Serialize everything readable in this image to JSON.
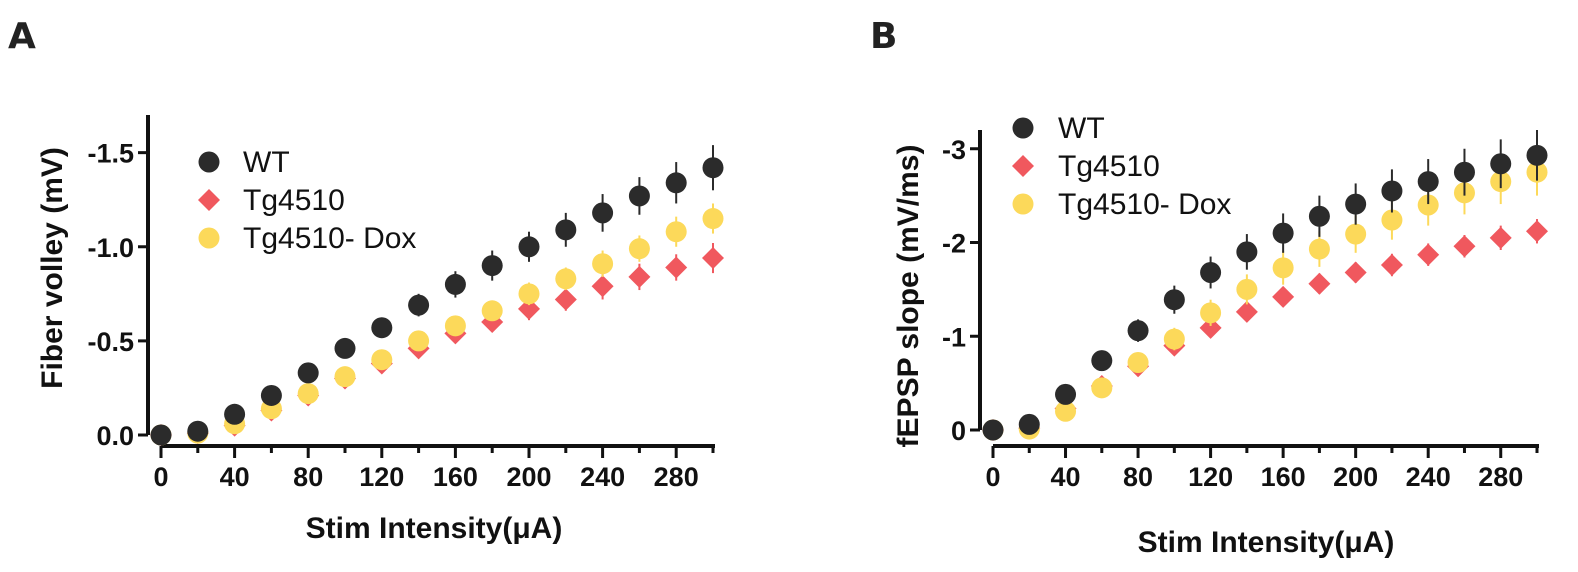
{
  "chart_data": [
    {
      "panel": "A",
      "type": "scatter",
      "xlabel": "Stim Intensity(μA)",
      "ylabel": "Fiber volley (mV)",
      "xlim": [
        0,
        300
      ],
      "ylim": [
        0,
        -1.7
      ],
      "xticks": [
        0,
        40,
        80,
        120,
        160,
        200,
        240,
        280
      ],
      "xtick_labels": [
        "0",
        "40",
        "80",
        "120",
        "160",
        "200",
        "240",
        "280"
      ],
      "yticks": [
        0,
        -0.5,
        -1.0,
        -1.5
      ],
      "ytick_labels": [
        "0.0",
        "-0.5",
        "-1.0",
        "-1.5"
      ],
      "y_axis_inverted": true,
      "legend_position": "top-left",
      "x": [
        0,
        20,
        40,
        60,
        80,
        100,
        120,
        140,
        160,
        180,
        200,
        220,
        240,
        260,
        280,
        300
      ],
      "series": [
        {
          "name": "WT",
          "marker": "circle",
          "color": "#2b2b2b",
          "values": [
            0,
            -0.02,
            -0.11,
            -0.21,
            -0.33,
            -0.46,
            -0.57,
            -0.69,
            -0.8,
            -0.9,
            -1.0,
            -1.09,
            -1.18,
            -1.27,
            -1.34,
            -1.42
          ],
          "errors": [
            0,
            0.01,
            0.02,
            0.03,
            0.04,
            0.04,
            0.05,
            0.06,
            0.07,
            0.08,
            0.08,
            0.09,
            0.1,
            0.1,
            0.11,
            0.12
          ]
        },
        {
          "name": "Tg4510",
          "marker": "diamond",
          "color": "#f0585e",
          "values": [
            0,
            -0.01,
            -0.05,
            -0.13,
            -0.21,
            -0.3,
            -0.38,
            -0.46,
            -0.54,
            -0.6,
            -0.67,
            -0.72,
            -0.79,
            -0.84,
            -0.89,
            -0.94
          ],
          "errors": [
            0,
            0.01,
            0.02,
            0.02,
            0.03,
            0.03,
            0.04,
            0.04,
            0.05,
            0.05,
            0.06,
            0.06,
            0.07,
            0.07,
            0.07,
            0.08
          ]
        },
        {
          "name": "Tg4510- Dox",
          "marker": "circle",
          "color": "#fcd95a",
          "values": [
            0,
            -0.01,
            -0.06,
            -0.14,
            -0.22,
            -0.31,
            -0.4,
            -0.5,
            -0.58,
            -0.66,
            -0.75,
            -0.83,
            -0.91,
            -0.99,
            -1.08,
            -1.15
          ],
          "errors": [
            0,
            0.01,
            0.02,
            0.02,
            0.03,
            0.03,
            0.04,
            0.04,
            0.05,
            0.05,
            0.06,
            0.06,
            0.07,
            0.07,
            0.08,
            0.08
          ]
        }
      ]
    },
    {
      "panel": "B",
      "type": "scatter",
      "xlabel": "Stim Intensity(μA)",
      "ylabel": "fEPSP slope (mV/ms)",
      "xlim": [
        0,
        300
      ],
      "ylim": [
        0,
        -3.2
      ],
      "xticks": [
        0,
        40,
        80,
        120,
        160,
        200,
        240,
        280
      ],
      "xtick_labels": [
        "0",
        "40",
        "80",
        "120",
        "160",
        "200",
        "240",
        "280"
      ],
      "yticks": [
        0,
        -1,
        -2,
        -3
      ],
      "ytick_labels": [
        "0",
        "-1",
        "-2",
        "-3"
      ],
      "y_axis_inverted": true,
      "legend_position": "top-left",
      "x": [
        0,
        20,
        40,
        60,
        80,
        100,
        120,
        140,
        160,
        180,
        200,
        220,
        240,
        260,
        280,
        300
      ],
      "series": [
        {
          "name": "WT",
          "marker": "circle",
          "color": "#2b2b2b",
          "values": [
            0,
            -0.06,
            -0.38,
            -0.74,
            -1.06,
            -1.39,
            -1.68,
            -1.9,
            -2.1,
            -2.28,
            -2.41,
            -2.55,
            -2.65,
            -2.75,
            -2.84,
            -2.93
          ],
          "errors": [
            0,
            0.03,
            0.08,
            0.1,
            0.12,
            0.15,
            0.17,
            0.19,
            0.21,
            0.22,
            0.22,
            0.23,
            0.24,
            0.25,
            0.26,
            0.27
          ]
        },
        {
          "name": "Tg4510",
          "marker": "diamond",
          "color": "#f0585e",
          "values": [
            0,
            -0.02,
            -0.23,
            -0.47,
            -0.68,
            -0.9,
            -1.09,
            -1.26,
            -1.42,
            -1.56,
            -1.68,
            -1.76,
            -1.87,
            -1.96,
            -2.05,
            -2.12
          ],
          "errors": [
            0,
            0.02,
            0.05,
            0.06,
            0.07,
            0.08,
            0.09,
            0.1,
            0.1,
            0.11,
            0.11,
            0.12,
            0.12,
            0.12,
            0.13,
            0.13
          ]
        },
        {
          "name": "Tg4510- Dox",
          "marker": "circle",
          "color": "#fcd95a",
          "values": [
            0,
            -0.01,
            -0.2,
            -0.45,
            -0.72,
            -0.97,
            -1.25,
            -1.5,
            -1.73,
            -1.93,
            -2.09,
            -2.24,
            -2.4,
            -2.53,
            -2.65,
            -2.75
          ],
          "errors": [
            0,
            0.02,
            0.06,
            0.08,
            0.1,
            0.12,
            0.14,
            0.16,
            0.18,
            0.19,
            0.2,
            0.21,
            0.22,
            0.23,
            0.24,
            0.25
          ]
        }
      ]
    }
  ]
}
